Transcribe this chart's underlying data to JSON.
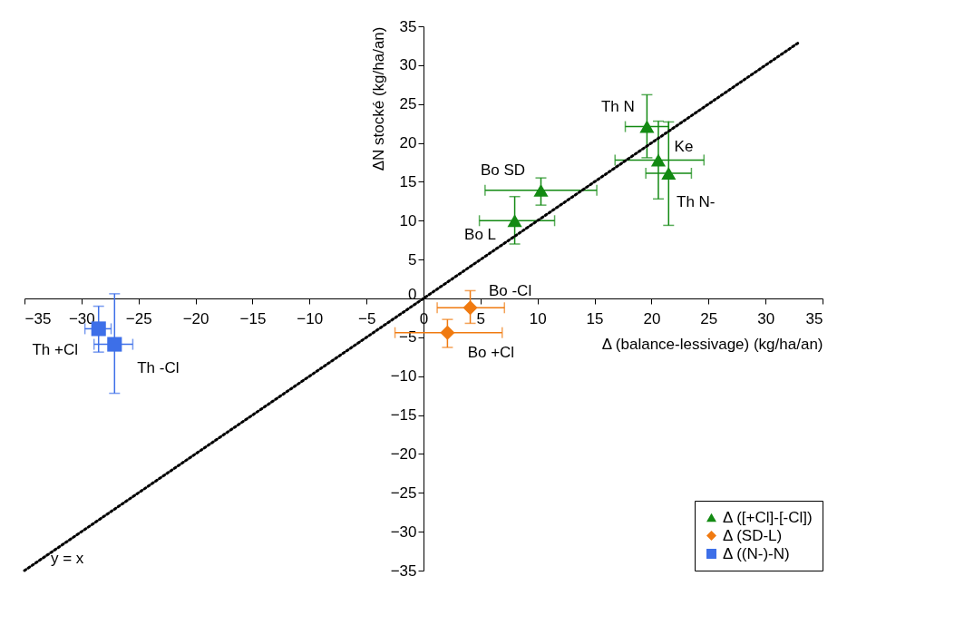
{
  "chart_data": {
    "type": "scatter",
    "xlabel": "Δ (balance-lessivage) (kg/ha/an)",
    "ylabel": "ΔN stocké  (kg/ha/an)",
    "xlim": [
      -35,
      35
    ],
    "ylim": [
      -35,
      35
    ],
    "xticks": [
      -35,
      -30,
      -25,
      -20,
      -15,
      -10,
      -5,
      0,
      5,
      10,
      15,
      20,
      25,
      30,
      35
    ],
    "yticks": [
      -35,
      -30,
      -25,
      -20,
      -15,
      -10,
      -5,
      0,
      5,
      10,
      15,
      20,
      25,
      30,
      35
    ],
    "grid": false,
    "legend": "bottom right",
    "series": [
      {
        "name": "Δ ([+Cl]-[-Cl])",
        "color": "#138a13",
        "marker": "triangle",
        "x": [
          19.6,
          20.6,
          21.5,
          10.3,
          8.0
        ],
        "values": [
          22.1,
          17.8,
          16.1,
          13.9,
          10.0
        ],
        "xerrors": [
          [
            17.7,
            21.5
          ],
          [
            16.8,
            24.6
          ],
          [
            19.5,
            23.5
          ],
          [
            5.4,
            15.2
          ],
          [
            4.9,
            11.5
          ]
        ],
        "errors": [
          [
            18.1,
            26.2
          ],
          [
            12.8,
            22.8
          ],
          [
            9.4,
            22.7
          ],
          [
            12.0,
            15.5
          ],
          [
            7.0,
            13.1
          ]
        ]
      },
      {
        "name": "Δ (SD-L)",
        "color": "#f07a10",
        "marker": "diamond",
        "x": [
          4.1,
          2.1
        ],
        "values": [
          -1.2,
          -4.4
        ],
        "xerrors": [
          [
            1.2,
            7.1
          ],
          [
            -2.5,
            6.9
          ]
        ],
        "errors": [
          [
            -3.2,
            1.0
          ],
          [
            -6.3,
            -2.7
          ]
        ]
      },
      {
        "name": "Δ ((N-)-N)",
        "color": "#3d6fe8",
        "marker": "square",
        "x": [
          -28.5,
          -27.1
        ],
        "values": [
          -3.9,
          -5.9
        ],
        "xerrors": [
          [
            -29.7,
            -27.4
          ],
          [
            -28.9,
            -25.5
          ]
        ],
        "errors": [
          [
            -6.9,
            -1.0
          ],
          [
            -12.2,
            0.6
          ]
        ]
      },
      {
        "type": "line",
        "color": "#000000",
        "line_style": "dotted",
        "x": [
          -35,
          33
        ],
        "values": [
          -35,
          33
        ]
      }
    ],
    "annotations": [
      {
        "text": "Th N",
        "x": 19.6,
        "y": 22.1
      },
      {
        "text": "Ke",
        "x": 20.6,
        "y": 17.8
      },
      {
        "text": "Th N-",
        "x": 21.5,
        "y": 16.1
      },
      {
        "text": "Bo SD",
        "x": 10.3,
        "y": 13.9
      },
      {
        "text": "Bo L",
        "x": 8.0,
        "y": 10.0
      },
      {
        "text": "Bo -Cl",
        "x": 4.1,
        "y": -1.2
      },
      {
        "text": "Bo +Cl",
        "x": 2.1,
        "y": -4.4
      },
      {
        "text": "Th +Cl",
        "x": -28.5,
        "y": -3.9
      },
      {
        "text": "Th -Cl",
        "x": -27.1,
        "y": -5.9
      },
      {
        "text": "y = x",
        "x": -33.0,
        "y": -33.0
      }
    ]
  }
}
